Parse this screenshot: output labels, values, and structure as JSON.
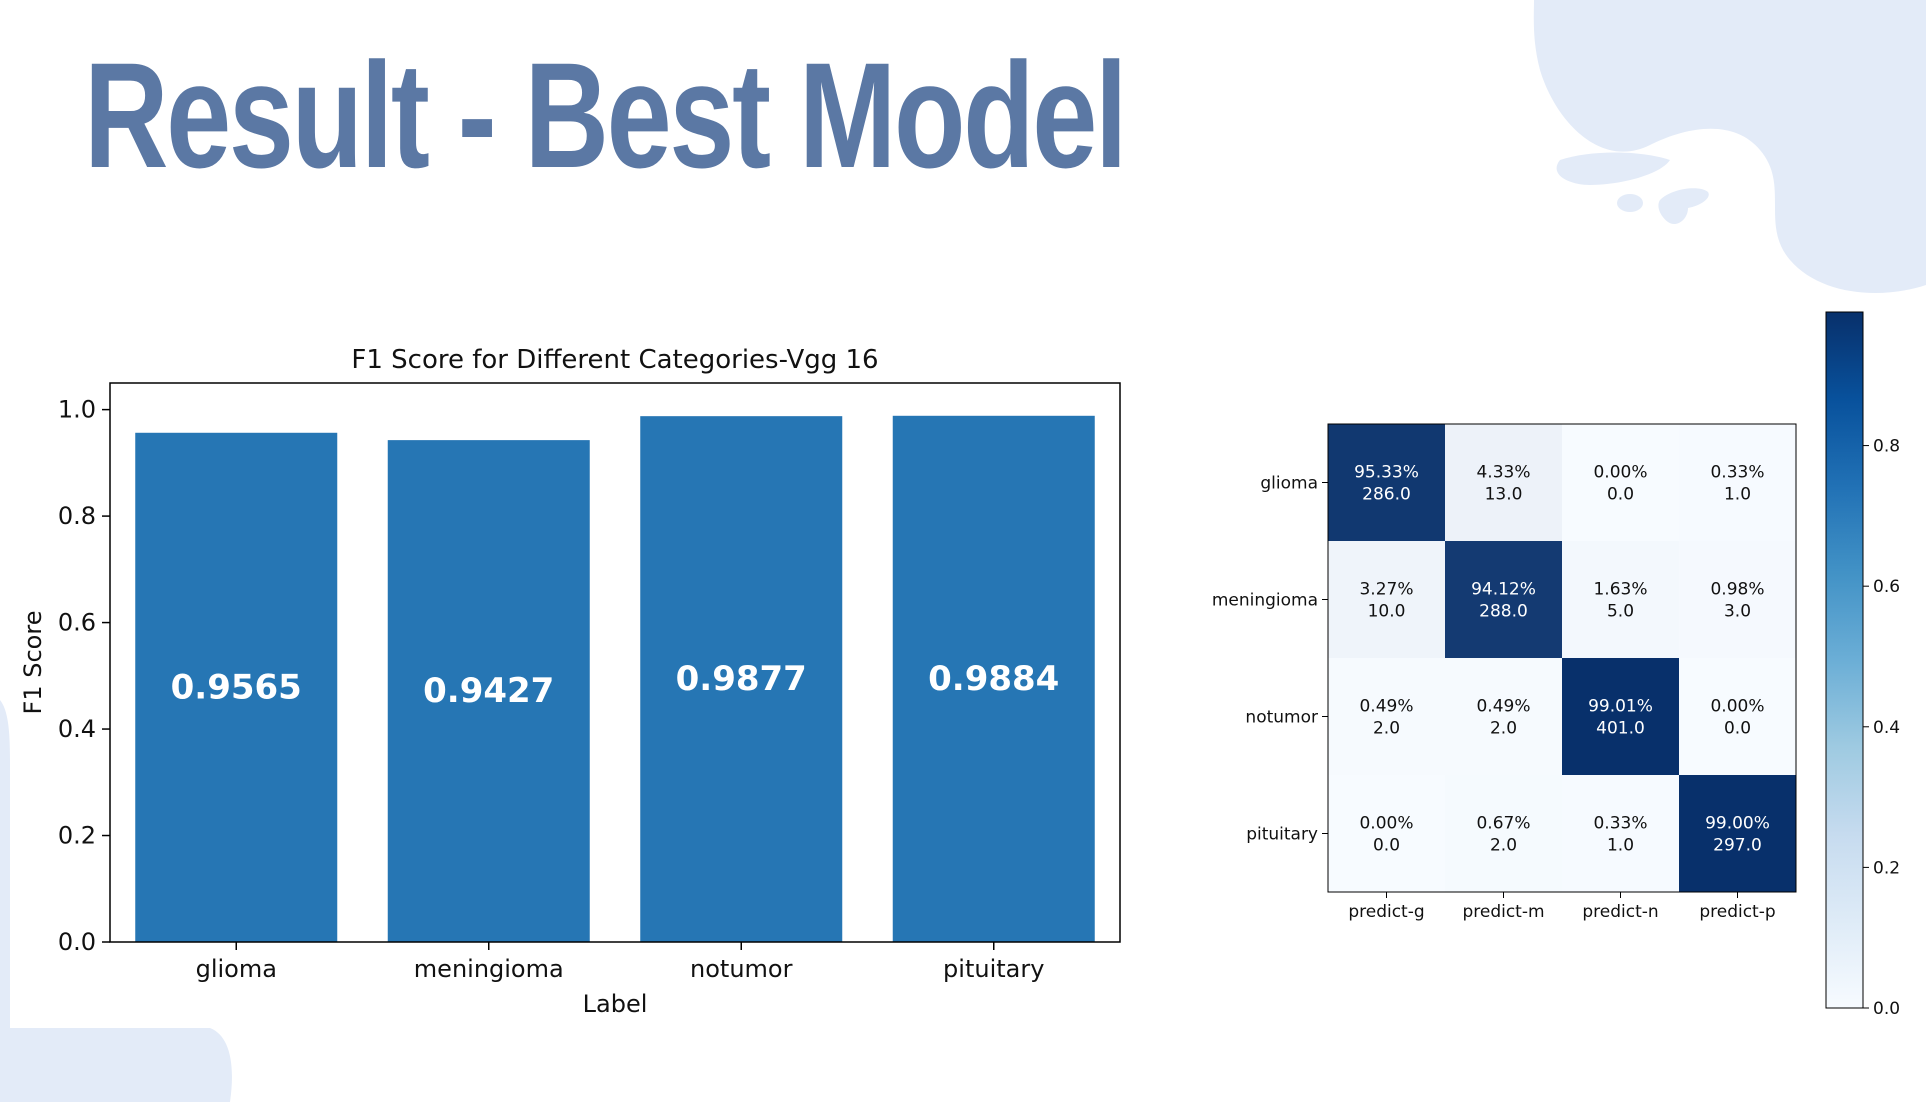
{
  "slide": {
    "title": "Result - Best Model",
    "colors": {
      "title": "#5b78a4",
      "decor": "#e3ebf8",
      "bar": "#2676b4",
      "cmap_low": "#f7fbff",
      "cmap_high": "#08306b"
    }
  },
  "chart_data": [
    {
      "type": "bar",
      "title": "F1 Score for Different Categories-Vgg 16",
      "xlabel": "Label",
      "ylabel": "F1 Score",
      "categories": [
        "glioma",
        "meningioma",
        "notumor",
        "pituitary"
      ],
      "values": [
        0.9565,
        0.9427,
        0.9877,
        0.9884
      ],
      "value_labels": [
        "0.9565",
        "0.9427",
        "0.9877",
        "0.9884"
      ],
      "ylim": [
        0,
        1.05
      ],
      "yticks": [
        0.0,
        0.2,
        0.4,
        0.6,
        0.8,
        1.0
      ],
      "ytick_labels": [
        "0.0",
        "0.2",
        "0.4",
        "0.6",
        "0.8",
        "1.0"
      ],
      "grid": false,
      "color": "#2676b4"
    },
    {
      "type": "heatmap",
      "title": "",
      "row_labels": [
        "glioma",
        "meningioma",
        "notumor",
        "pituitary"
      ],
      "col_labels": [
        "predict-g",
        "predict-m",
        "predict-n",
        "predict-p"
      ],
      "fractions": [
        [
          0.9533,
          0.0433,
          0.0,
          0.0033
        ],
        [
          0.0327,
          0.9412,
          0.0163,
          0.0098
        ],
        [
          0.0049,
          0.0049,
          0.9901,
          0.0
        ],
        [
          0.0,
          0.0067,
          0.0033,
          0.99
        ]
      ],
      "percent_labels": [
        [
          "95.33%",
          "4.33%",
          "0.00%",
          "0.33%"
        ],
        [
          "3.27%",
          "94.12%",
          "1.63%",
          "0.98%"
        ],
        [
          "0.49%",
          "0.49%",
          "99.01%",
          "0.00%"
        ],
        [
          "0.00%",
          "0.67%",
          "0.33%",
          "99.00%"
        ]
      ],
      "count_labels": [
        [
          "286.0",
          "13.0",
          "0.0",
          "1.0"
        ],
        [
          "10.0",
          "288.0",
          "5.0",
          "3.0"
        ],
        [
          "2.0",
          "2.0",
          "401.0",
          "0.0"
        ],
        [
          "0.0",
          "2.0",
          "1.0",
          "297.0"
        ]
      ],
      "colorbar": {
        "range": [
          0,
          0.99
        ],
        "ticks": [
          0.0,
          0.2,
          0.4,
          0.6,
          0.8
        ],
        "tick_labels": [
          "0.0",
          "0.2",
          "0.4",
          "0.6",
          "0.8"
        ],
        "colormap": "Blues"
      }
    }
  ]
}
